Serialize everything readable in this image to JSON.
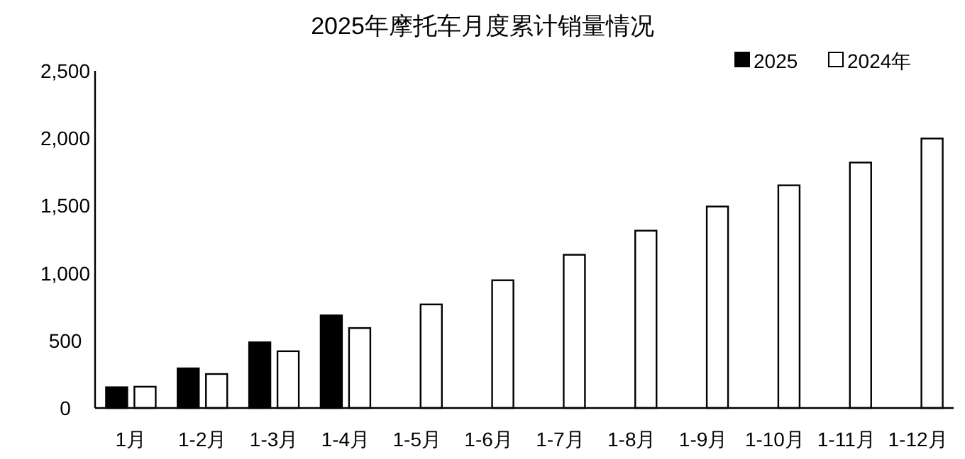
{
  "chart_data": {
    "type": "bar",
    "title": "2025年摩托车月度累计销量情况",
    "categories": [
      "1月",
      "1-2月",
      "1-3月",
      "1-4月",
      "1-5月",
      "1-6月",
      "1-7月",
      "1-8月",
      "1-9月",
      "1-10月",
      "1-11月",
      "1-12月"
    ],
    "series": [
      {
        "name": "2025",
        "color": "#000000",
        "values": [
          154,
          294,
          487,
          687,
          null,
          null,
          null,
          null,
          null,
          null,
          null,
          null
        ]
      },
      {
        "name": "2024年",
        "color": "#ffffff",
        "values": [
          158,
          252,
          421,
          593,
          768,
          947,
          1136,
          1315,
          1494,
          1651,
          1820,
          1998
        ]
      }
    ],
    "ylim": [
      0,
      2500
    ],
    "yticks": [
      {
        "value": 0,
        "label": "0"
      },
      {
        "value": 500,
        "label": "500"
      },
      {
        "value": 1000,
        "label": "1,000"
      },
      {
        "value": 1500,
        "label": "1,500"
      },
      {
        "value": 2000,
        "label": "2,000"
      },
      {
        "value": 2500,
        "label": "2,500"
      }
    ],
    "legend": "top right",
    "grid": false
  }
}
